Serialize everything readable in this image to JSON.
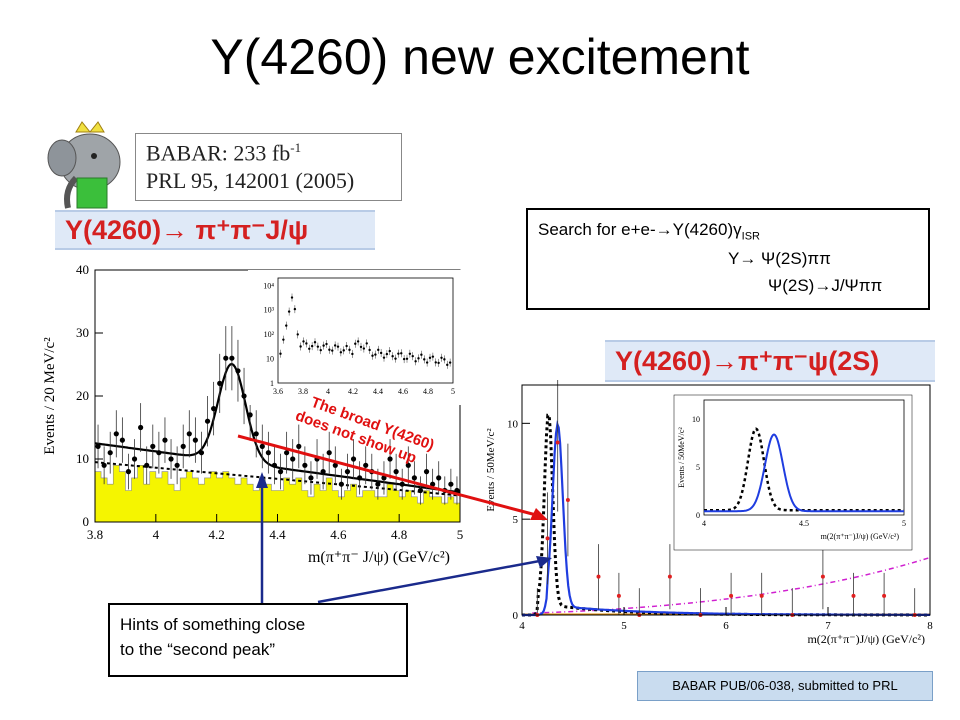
{
  "title": "Y(4260) new excitement",
  "babar": {
    "line1_base": "BABAR: 233 fb",
    "line1_sup": "-1",
    "line2": "PRL 95, 142001 (2005)"
  },
  "banner_left": "Y(4260)→ π⁺π⁻J/ψ",
  "banner_right": "Y(4260)→π⁺π⁻ψ(2S)",
  "search_box": {
    "line1_base": "Search for e+e-→Y(4260)γ",
    "line1_sub": "ISR",
    "line2": "Y→ Ψ(2S)ππ",
    "line3": "Ψ(2S)→J/Ψππ"
  },
  "annotation_red": "The broad Y(4260)\ndoes not show up",
  "hint_box": "Hints of something close\nto the “second peak”",
  "reference": "BABAR PUB/06-038, submitted to PRL",
  "colors": {
    "banner_text": "#d42020",
    "banner_bg": "#dfe9f7",
    "fill": "#f5f500",
    "fit_blue": "#1f3de0",
    "arrow_red": "#e01010",
    "arrow_blue": "#1a2a8c",
    "magenta": "#d020d0"
  },
  "chart_data": [
    {
      "type": "scatter",
      "xlabel": "m(π⁺π⁻ J/ψ) (GeV/c²)",
      "ylabel": "Events / 20 MeV/c²",
      "xlim": [
        3.8,
        5.0
      ],
      "ylim": [
        0,
        40
      ],
      "xticks": [
        "3.8",
        "4",
        "4.2",
        "4.4",
        "4.6",
        "4.8",
        "5"
      ],
      "yticks": [
        "0",
        "10",
        "20",
        "30",
        "40"
      ],
      "x": [
        3.81,
        3.83,
        3.85,
        3.87,
        3.89,
        3.91,
        3.93,
        3.95,
        3.97,
        3.99,
        4.01,
        4.03,
        4.05,
        4.07,
        4.09,
        4.11,
        4.13,
        4.15,
        4.17,
        4.19,
        4.21,
        4.23,
        4.25,
        4.27,
        4.29,
        4.31,
        4.33,
        4.35,
        4.37,
        4.39,
        4.41,
        4.43,
        4.45,
        4.47,
        4.49,
        4.51,
        4.53,
        4.55,
        4.57,
        4.59,
        4.61,
        4.63,
        4.65,
        4.67,
        4.69,
        4.71,
        4.73,
        4.75,
        4.77,
        4.79,
        4.81,
        4.83,
        4.85,
        4.87,
        4.89,
        4.91,
        4.93,
        4.95,
        4.97,
        4.99
      ],
      "y": [
        12,
        9,
        11,
        14,
        13,
        8,
        10,
        15,
        9,
        12,
        11,
        13,
        10,
        9,
        12,
        14,
        13,
        11,
        16,
        18,
        22,
        26,
        26,
        24,
        20,
        17,
        14,
        12,
        11,
        9,
        8,
        11,
        10,
        12,
        9,
        7,
        10,
        8,
        11,
        9,
        6,
        8,
        10,
        7,
        9,
        8,
        6,
        7,
        10,
        8,
        6,
        9,
        7,
        5,
        8,
        6,
        7,
        5,
        6,
        5
      ],
      "background_fill": [
        8,
        7,
        6,
        9,
        8,
        5,
        7,
        9,
        6,
        8,
        7,
        8,
        6,
        5,
        7,
        8,
        7,
        6,
        7,
        8,
        7,
        8,
        7,
        6,
        7,
        6,
        5,
        7,
        6,
        5,
        5,
        7,
        6,
        7,
        5,
        4,
        6,
        5,
        7,
        5,
        4,
        5,
        6,
        4,
        5,
        5,
        4,
        4,
        6,
        5,
        4,
        5,
        4,
        3,
        5,
        4,
        4,
        3,
        4,
        3
      ],
      "fit_peak_mass": 4.25,
      "fit_peak_height": 25,
      "inset": {
        "yscale": "log",
        "xlim": [
          3.6,
          5.0
        ],
        "xticks": [
          "3.6",
          "3.8",
          "4",
          "4.2",
          "4.4",
          "4.6",
          "4.8",
          "5"
        ],
        "yticks": [
          "1",
          "10",
          "10²",
          "10³",
          "10⁴"
        ]
      }
    },
    {
      "type": "line",
      "xlabel": "m(2(π⁺π⁻)J/ψ)  (GeV/c²)",
      "ylabel": "Events / 50MeV/c²",
      "xlim": [
        4,
        8
      ],
      "ylim": [
        0,
        12
      ],
      "xticks": [
        "4",
        "5",
        "6",
        "7",
        "8"
      ],
      "yticks": [
        "0",
        "5",
        "10"
      ],
      "series": [],
      "peak_mass": 4.35,
      "peak_height": 9.5,
      "x": [
        4.15,
        4.25,
        4.35,
        4.45,
        4.75,
        4.95,
        5.15,
        5.45,
        5.75,
        6.05,
        6.35,
        6.65,
        6.95,
        7.25,
        7.55,
        7.85
      ],
      "y": [
        0,
        4,
        9,
        6,
        2,
        1,
        0,
        2,
        0,
        1,
        1,
        0,
        2,
        1,
        1,
        0
      ],
      "inset": {
        "xlim": [
          4,
          5
        ],
        "ylim": [
          0,
          12
        ],
        "xticks": [
          "4",
          "4.5",
          "5"
        ],
        "yticks": [
          "0",
          "5",
          "10"
        ],
        "xlabel": "m(2(π⁺π⁻)J/ψ)  (GeV/c²)",
        "ylabel": "Events / 50MeV/c²"
      }
    }
  ]
}
